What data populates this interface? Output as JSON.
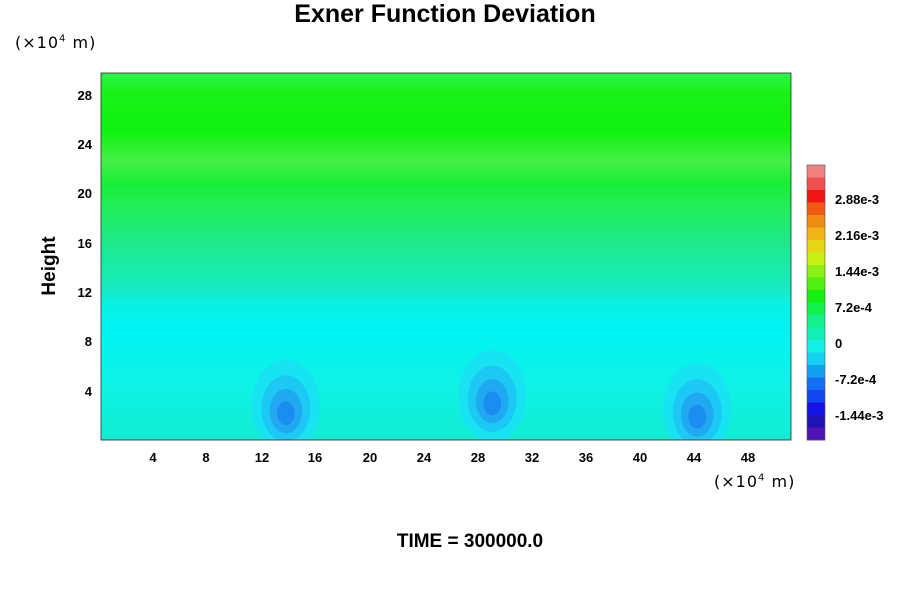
{
  "chart_data": {
    "type": "heatmap",
    "title": "Exner Function Deviation",
    "ylabel": "Height",
    "y_unit_prefix": "(×10",
    "y_unit_exp": "4",
    "y_unit_suffix": " m)",
    "x_unit_prefix": "(×10",
    "x_unit_exp": "4",
    "x_unit_suffix": " m)",
    "x_ticks": [
      "4",
      "8",
      "12",
      "16",
      "20",
      "24",
      "28",
      "32",
      "36",
      "40",
      "44",
      "48"
    ],
    "y_ticks": [
      "28",
      "24",
      "20",
      "16",
      "12",
      "8",
      "4"
    ],
    "xlim": [
      0,
      51.5
    ],
    "ylim": [
      0,
      30
    ],
    "colorbar_ticks": [
      "2.88e-3",
      "2.16e-3",
      "1.44e-3",
      "7.2e-4",
      "0",
      "-7.2e-4",
      "-1.44e-3"
    ],
    "colorbar_range": [
      -0.0018,
      0.00324
    ],
    "field": {
      "bands": [
        {
          "y": [
            0,
            9
          ],
          "value": -0.00024
        },
        {
          "y": [
            9,
            12
          ],
          "value": -0.00018
        },
        {
          "y": [
            12,
            17
          ],
          "value": 0.0002
        },
        {
          "y": [
            17,
            21
          ],
          "value": 0.00048
        },
        {
          "y": [
            21,
            23
          ],
          "value": 0.001
        },
        {
          "y": [
            23,
            25
          ],
          "value": 0.00085
        },
        {
          "y": [
            25,
            30
          ],
          "value": 0.00076
        }
      ],
      "minima": [
        {
          "x": 13.8,
          "y": 2.8,
          "value": -0.00065
        },
        {
          "x": 29.2,
          "y": 3.6,
          "value": -0.0005
        },
        {
          "x": 44.5,
          "y": 2.5,
          "value": -0.00068
        }
      ]
    }
  },
  "footer": {
    "time_text": "TIME = 300000.0"
  }
}
